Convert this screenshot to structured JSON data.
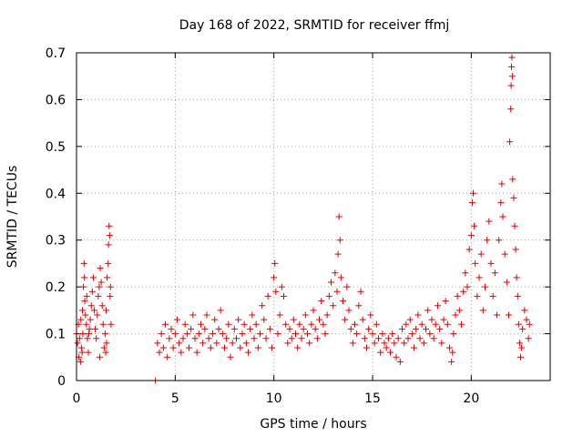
{
  "chart_data": {
    "type": "scatter",
    "title": "Day 168 of 2022, SRMTID for receiver ffmj",
    "xlabel": "GPS time / hours",
    "ylabel": "SRMTID / TECUs",
    "xlim": [
      0,
      24
    ],
    "ylim": [
      0,
      0.7
    ],
    "xticks": [
      0,
      5,
      10,
      15,
      20
    ],
    "xtick_labels": [
      "0",
      "5",
      "10",
      "15",
      "20"
    ],
    "yticks": [
      0,
      0.1,
      0.2,
      0.3,
      0.4,
      0.5,
      0.6,
      0.7
    ],
    "ytick_labels": [
      "0",
      "0.1",
      "0.2",
      "0.3",
      "0.4",
      "0.5",
      "0.6",
      "0.7"
    ],
    "grid": true,
    "marker": "+",
    "color": "#e00000",
    "series": [
      {
        "name": "SRMTID",
        "points": [
          [
            0.0,
            0.1
          ],
          [
            0.05,
            0.08
          ],
          [
            0.1,
            0.12
          ],
          [
            0.12,
            0.05
          ],
          [
            0.15,
            0.09
          ],
          [
            0.2,
            0.04
          ],
          [
            0.22,
            0.13
          ],
          [
            0.25,
            0.07
          ],
          [
            0.3,
            0.15
          ],
          [
            0.32,
            0.1
          ],
          [
            0.35,
            0.2
          ],
          [
            0.38,
            0.25
          ],
          [
            0.4,
            0.22
          ],
          [
            0.42,
            0.17
          ],
          [
            0.45,
            0.14
          ],
          [
            0.5,
            0.12
          ],
          [
            0.55,
            0.09
          ],
          [
            0.6,
            0.06
          ],
          [
            0.65,
            0.11
          ],
          [
            0.7,
            0.13
          ],
          [
            0.75,
            0.16
          ],
          [
            0.8,
            0.19
          ],
          [
            0.85,
            0.22
          ],
          [
            0.9,
            0.15
          ],
          [
            0.95,
            0.11
          ],
          [
            1.0,
            0.09
          ],
          [
            1.05,
            0.14
          ],
          [
            1.1,
            0.18
          ],
          [
            1.15,
            0.2
          ],
          [
            1.2,
            0.24
          ],
          [
            1.25,
            0.21
          ],
          [
            1.3,
            0.16
          ],
          [
            1.35,
            0.12
          ],
          [
            1.4,
            0.07
          ],
          [
            1.45,
            0.1
          ],
          [
            1.5,
            0.15
          ],
          [
            1.55,
            0.22
          ],
          [
            1.6,
            0.25
          ],
          [
            1.62,
            0.29
          ],
          [
            1.65,
            0.33
          ],
          [
            1.68,
            0.31
          ],
          [
            1.7,
            0.18
          ],
          [
            1.72,
            0.2
          ],
          [
            1.75,
            0.12
          ],
          [
            1.48,
            0.06
          ],
          [
            1.52,
            0.08
          ],
          [
            0.28,
            0.06
          ],
          [
            0.52,
            0.18
          ],
          [
            0.62,
            0.1
          ],
          [
            1.18,
            0.05
          ],
          [
            4.0,
            0.0
          ],
          [
            4.1,
            0.08
          ],
          [
            4.2,
            0.06
          ],
          [
            4.3,
            0.1
          ],
          [
            4.4,
            0.07
          ],
          [
            4.5,
            0.12
          ],
          [
            4.6,
            0.05
          ],
          [
            4.7,
            0.09
          ],
          [
            4.8,
            0.11
          ],
          [
            4.9,
            0.07
          ],
          [
            5.0,
            0.1
          ],
          [
            5.1,
            0.13
          ],
          [
            5.2,
            0.08
          ],
          [
            5.3,
            0.06
          ],
          [
            5.4,
            0.09
          ],
          [
            5.5,
            0.12
          ],
          [
            5.6,
            0.1
          ],
          [
            5.7,
            0.07
          ],
          [
            5.8,
            0.11
          ],
          [
            5.9,
            0.14
          ],
          [
            6.0,
            0.09
          ],
          [
            6.1,
            0.06
          ],
          [
            6.2,
            0.1
          ],
          [
            6.3,
            0.12
          ],
          [
            6.4,
            0.08
          ],
          [
            6.5,
            0.11
          ],
          [
            6.6,
            0.14
          ],
          [
            6.7,
            0.09
          ],
          [
            6.8,
            0.07
          ],
          [
            6.9,
            0.1
          ],
          [
            7.0,
            0.13
          ],
          [
            7.1,
            0.08
          ],
          [
            7.2,
            0.11
          ],
          [
            7.3,
            0.15
          ],
          [
            7.4,
            0.1
          ],
          [
            7.5,
            0.07
          ],
          [
            7.6,
            0.09
          ],
          [
            7.7,
            0.12
          ],
          [
            7.8,
            0.05
          ],
          [
            7.9,
            0.08
          ],
          [
            8.0,
            0.11
          ],
          [
            8.1,
            0.09
          ],
          [
            8.2,
            0.13
          ],
          [
            8.3,
            0.07
          ],
          [
            8.4,
            0.1
          ],
          [
            8.5,
            0.12
          ],
          [
            8.6,
            0.08
          ],
          [
            8.7,
            0.06
          ],
          [
            8.8,
            0.11
          ],
          [
            8.9,
            0.14
          ],
          [
            9.0,
            0.09
          ],
          [
            9.1,
            0.12
          ],
          [
            9.2,
            0.07
          ],
          [
            9.3,
            0.1
          ],
          [
            9.4,
            0.16
          ],
          [
            9.5,
            0.13
          ],
          [
            9.6,
            0.09
          ],
          [
            9.7,
            0.18
          ],
          [
            9.8,
            0.11
          ],
          [
            9.9,
            0.07
          ],
          [
            10.0,
            0.22
          ],
          [
            10.05,
            0.25
          ],
          [
            10.1,
            0.19
          ],
          [
            10.2,
            0.1
          ],
          [
            10.3,
            0.14
          ],
          [
            10.4,
            0.2
          ],
          [
            10.5,
            0.18
          ],
          [
            10.6,
            0.12
          ],
          [
            10.7,
            0.08
          ],
          [
            10.8,
            0.11
          ],
          [
            10.9,
            0.09
          ],
          [
            11.0,
            0.13
          ],
          [
            11.1,
            0.1
          ],
          [
            11.2,
            0.07
          ],
          [
            11.3,
            0.12
          ],
          [
            11.4,
            0.09
          ],
          [
            11.5,
            0.11
          ],
          [
            11.6,
            0.14
          ],
          [
            11.7,
            0.1
          ],
          [
            11.8,
            0.08
          ],
          [
            11.9,
            0.12
          ],
          [
            12.0,
            0.15
          ],
          [
            12.1,
            0.11
          ],
          [
            12.2,
            0.09
          ],
          [
            12.3,
            0.13
          ],
          [
            12.4,
            0.17
          ],
          [
            12.5,
            0.12
          ],
          [
            12.6,
            0.1
          ],
          [
            12.7,
            0.14
          ],
          [
            12.8,
            0.18
          ],
          [
            12.9,
            0.21
          ],
          [
            13.0,
            0.16
          ],
          [
            13.1,
            0.23
          ],
          [
            13.2,
            0.19
          ],
          [
            13.25,
            0.27
          ],
          [
            13.3,
            0.35
          ],
          [
            13.35,
            0.3
          ],
          [
            13.4,
            0.22
          ],
          [
            13.5,
            0.17
          ],
          [
            13.6,
            0.13
          ],
          [
            13.7,
            0.2
          ],
          [
            13.8,
            0.15
          ],
          [
            13.9,
            0.11
          ],
          [
            14.0,
            0.08
          ],
          [
            14.1,
            0.12
          ],
          [
            14.2,
            0.1
          ],
          [
            14.3,
            0.16
          ],
          [
            14.4,
            0.19
          ],
          [
            14.5,
            0.13
          ],
          [
            14.6,
            0.09
          ],
          [
            14.7,
            0.07
          ],
          [
            14.8,
            0.11
          ],
          [
            14.9,
            0.14
          ],
          [
            15.0,
            0.1
          ],
          [
            15.1,
            0.08
          ],
          [
            15.2,
            0.12
          ],
          [
            15.3,
            0.09
          ],
          [
            15.4,
            0.06
          ],
          [
            15.5,
            0.1
          ],
          [
            15.6,
            0.08
          ],
          [
            15.7,
            0.07
          ],
          [
            15.8,
            0.09
          ],
          [
            15.9,
            0.06
          ],
          [
            16.0,
            0.1
          ],
          [
            16.1,
            0.08
          ],
          [
            16.2,
            0.05
          ],
          [
            16.3,
            0.09
          ],
          [
            16.4,
            0.04
          ],
          [
            16.5,
            0.11
          ],
          [
            16.6,
            0.08
          ],
          [
            16.7,
            0.12
          ],
          [
            16.8,
            0.09
          ],
          [
            16.9,
            0.13
          ],
          [
            17.0,
            0.1
          ],
          [
            17.1,
            0.07
          ],
          [
            17.2,
            0.11
          ],
          [
            17.3,
            0.14
          ],
          [
            17.4,
            0.09
          ],
          [
            17.5,
            0.12
          ],
          [
            17.6,
            0.08
          ],
          [
            17.7,
            0.11
          ],
          [
            17.8,
            0.15
          ],
          [
            17.9,
            0.1
          ],
          [
            18.0,
            0.13
          ],
          [
            18.1,
            0.09
          ],
          [
            18.2,
            0.12
          ],
          [
            18.3,
            0.16
          ],
          [
            18.4,
            0.11
          ],
          [
            18.5,
            0.08
          ],
          [
            18.6,
            0.13
          ],
          [
            18.7,
            0.17
          ],
          [
            18.8,
            0.12
          ],
          [
            18.9,
            0.07
          ],
          [
            19.0,
            0.04
          ],
          [
            19.05,
            0.06
          ],
          [
            19.1,
            0.1
          ],
          [
            19.2,
            0.14
          ],
          [
            19.3,
            0.18
          ],
          [
            19.4,
            0.15
          ],
          [
            19.5,
            0.12
          ],
          [
            19.6,
            0.19
          ],
          [
            19.7,
            0.23
          ],
          [
            19.8,
            0.2
          ],
          [
            19.9,
            0.28
          ],
          [
            20.0,
            0.31
          ],
          [
            20.05,
            0.38
          ],
          [
            20.1,
            0.4
          ],
          [
            20.15,
            0.33
          ],
          [
            20.2,
            0.25
          ],
          [
            20.3,
            0.18
          ],
          [
            20.4,
            0.22
          ],
          [
            20.5,
            0.27
          ],
          [
            20.6,
            0.15
          ],
          [
            20.7,
            0.2
          ],
          [
            20.8,
            0.3
          ],
          [
            20.9,
            0.34
          ],
          [
            21.0,
            0.25
          ],
          [
            21.1,
            0.18
          ],
          [
            21.2,
            0.23
          ],
          [
            21.3,
            0.14
          ],
          [
            21.4,
            0.3
          ],
          [
            21.5,
            0.38
          ],
          [
            21.55,
            0.42
          ],
          [
            21.6,
            0.35
          ],
          [
            21.7,
            0.27
          ],
          [
            21.8,
            0.21
          ],
          [
            21.9,
            0.14
          ],
          [
            21.95,
            0.51
          ],
          [
            22.0,
            0.58
          ],
          [
            22.02,
            0.63
          ],
          [
            22.04,
            0.67
          ],
          [
            22.06,
            0.69
          ],
          [
            22.08,
            0.65
          ],
          [
            22.1,
            0.43
          ],
          [
            22.15,
            0.39
          ],
          [
            22.2,
            0.33
          ],
          [
            22.25,
            0.28
          ],
          [
            22.3,
            0.22
          ],
          [
            22.35,
            0.18
          ],
          [
            22.4,
            0.12
          ],
          [
            22.45,
            0.08
          ],
          [
            22.5,
            0.05
          ],
          [
            22.55,
            0.07
          ],
          [
            22.6,
            0.11
          ],
          [
            22.7,
            0.15
          ],
          [
            22.8,
            0.13
          ],
          [
            22.9,
            0.09
          ],
          [
            22.95,
            0.12
          ]
        ]
      }
    ]
  }
}
